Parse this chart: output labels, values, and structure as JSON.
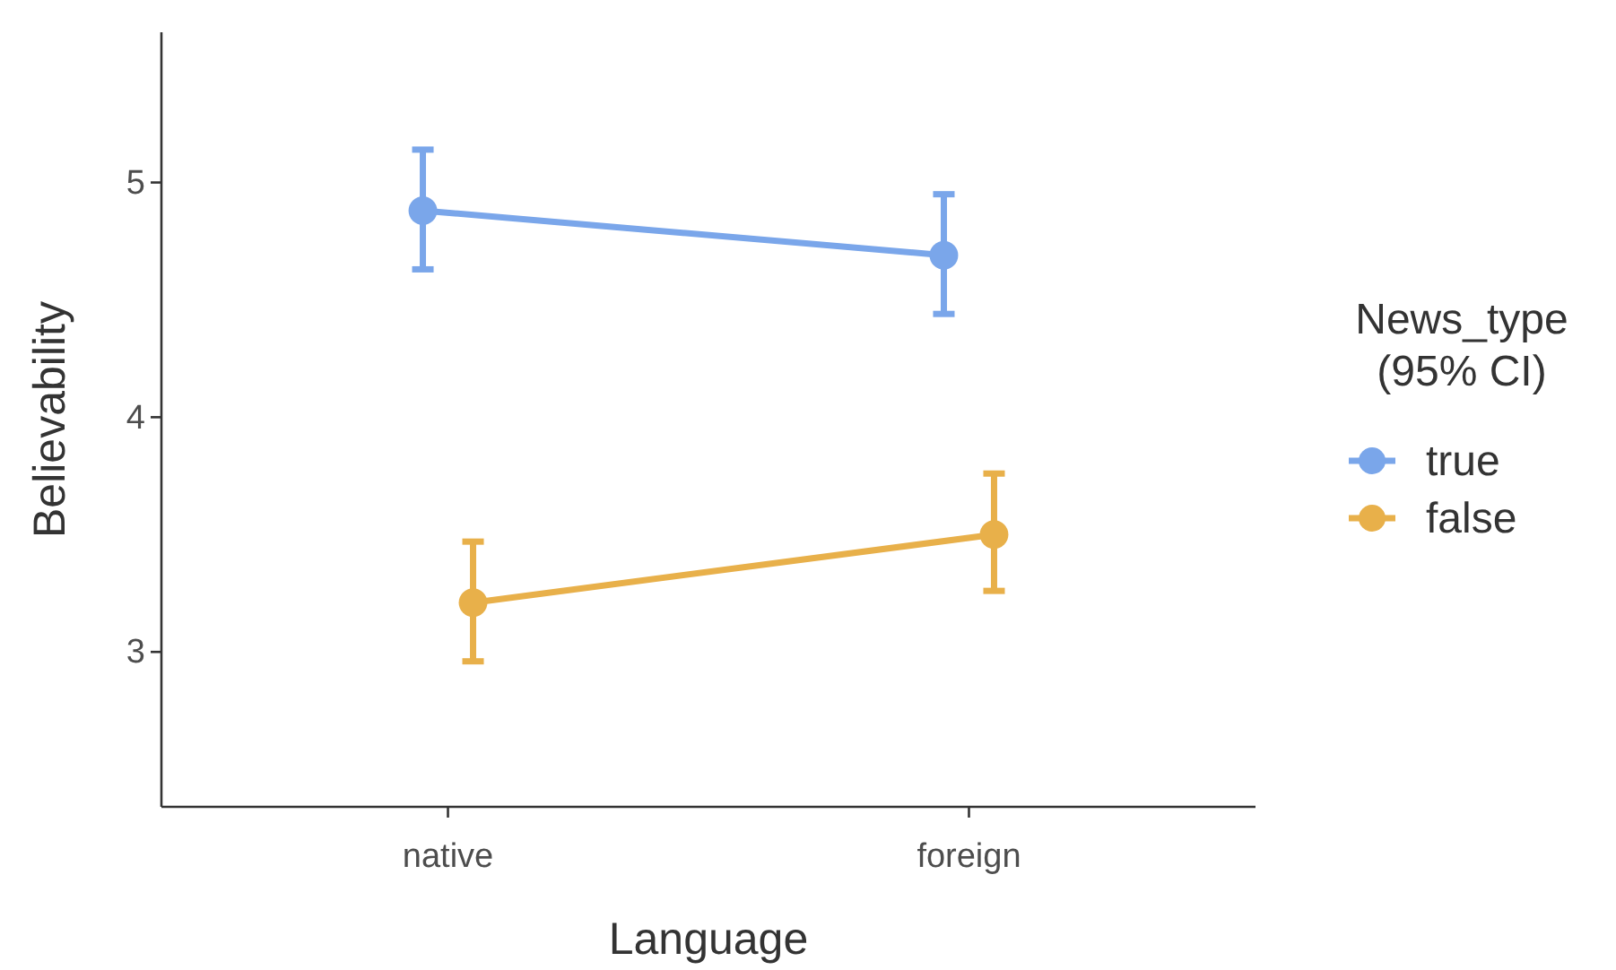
{
  "chart_data": {
    "type": "line",
    "xlabel": "Language",
    "ylabel": "Believability",
    "legend_title": "News_type\n(95% CI)",
    "categories": [
      "native",
      "foreign"
    ],
    "series": [
      {
        "name": "true",
        "color": "#7aa6ea",
        "values": [
          4.88,
          4.69
        ],
        "errors": [
          [
            4.63,
            5.14
          ],
          [
            4.44,
            4.95
          ]
        ]
      },
      {
        "name": "false",
        "color": "#e8b04a",
        "values": [
          3.21,
          3.5
        ],
        "errors": [
          [
            2.96,
            3.47
          ],
          [
            3.26,
            3.76
          ]
        ]
      }
    ],
    "ylim": [
      2.34,
      5.64
    ],
    "yticks": [
      3,
      4,
      5
    ],
    "grid": false,
    "legend": "right",
    "marker": "circle",
    "line_style": "solid"
  }
}
